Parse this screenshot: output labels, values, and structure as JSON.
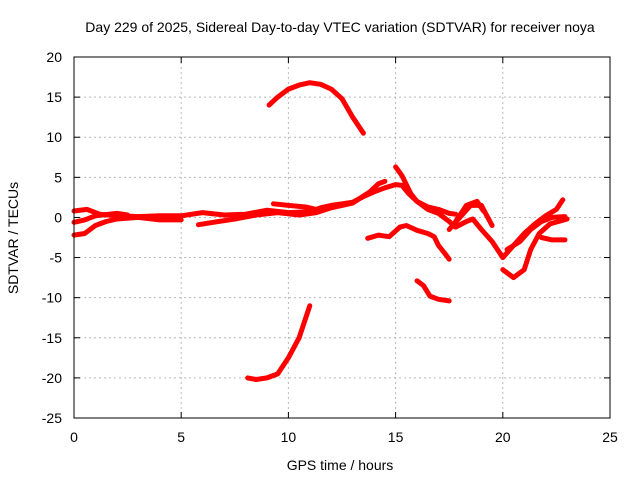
{
  "chart_data": {
    "type": "line",
    "title": "Day 229 of 2025, Sidereal Day-to-day VTEC variation (SDTVAR) for receiver noya",
    "xlabel": "GPS time / hours",
    "ylabel": "SDTVAR / TECUs",
    "xlim": [
      0,
      25
    ],
    "ylim": [
      -25,
      20
    ],
    "xticks": [
      0,
      5,
      10,
      15,
      20,
      25
    ],
    "yticks": [
      -25,
      -20,
      -15,
      -10,
      -5,
      0,
      5,
      10,
      15,
      20
    ],
    "grid": true,
    "series_color": "#ff0000",
    "series": [
      {
        "name": "arc-1",
        "points": [
          [
            0,
            0.8
          ],
          [
            0.6,
            1.0
          ],
          [
            1.2,
            0.4
          ],
          [
            2,
            0.2
          ],
          [
            3,
            0.1
          ],
          [
            4,
            0.2
          ],
          [
            5,
            0.2
          ],
          [
            6,
            0.6
          ],
          [
            7,
            0.3
          ],
          [
            8,
            0.4
          ],
          [
            9,
            0.9
          ],
          [
            10,
            0.6
          ],
          [
            11,
            0.7
          ],
          [
            11.5,
            1.2
          ],
          [
            12,
            1.5
          ],
          [
            12.5,
            1.7
          ],
          [
            13,
            1.9
          ],
          [
            13.5,
            2.6
          ],
          [
            14,
            3.2
          ],
          [
            14.5,
            3.7
          ],
          [
            15,
            4.1
          ],
          [
            15.3,
            4.0
          ],
          [
            15.6,
            3.0
          ],
          [
            16,
            2.0
          ],
          [
            16.5,
            1.3
          ],
          [
            17,
            1.0
          ],
          [
            17.5,
            0.5
          ],
          [
            17.8,
            0.4
          ]
        ]
      },
      {
        "name": "arc-2",
        "points": [
          [
            0,
            -2.2
          ],
          [
            0.5,
            -2.0
          ],
          [
            1,
            -1.0
          ],
          [
            1.5,
            -0.5
          ],
          [
            2,
            -0.2
          ],
          [
            3,
            0.0
          ],
          [
            4,
            -0.3
          ],
          [
            5,
            -0.3
          ]
        ]
      },
      {
        "name": "arc-3",
        "points": [
          [
            0,
            -0.6
          ],
          [
            0.5,
            -0.3
          ],
          [
            1,
            0.2
          ],
          [
            2,
            0.5
          ],
          [
            2.5,
            0.3
          ]
        ]
      },
      {
        "name": "arc-4",
        "points": [
          [
            5.8,
            -0.9
          ],
          [
            6.5,
            -0.6
          ],
          [
            7.5,
            -0.2
          ],
          [
            8.5,
            0.3
          ],
          [
            9.5,
            0.6
          ],
          [
            10.5,
            0.3
          ],
          [
            11.3,
            0.6
          ],
          [
            12,
            1.2
          ],
          [
            13,
            1.8
          ],
          [
            13.8,
            3.2
          ],
          [
            14.2,
            4.2
          ],
          [
            14.5,
            4.5
          ]
        ]
      },
      {
        "name": "arc-5",
        "points": [
          [
            9.3,
            1.7
          ],
          [
            10,
            1.5
          ],
          [
            10.8,
            1.3
          ],
          [
            11.3,
            1.0
          ]
        ]
      },
      {
        "name": "arc-6",
        "points": [
          [
            9.1,
            14.0
          ],
          [
            9.5,
            15.0
          ],
          [
            10,
            16.0
          ],
          [
            10.5,
            16.5
          ],
          [
            11,
            16.8
          ],
          [
            11.5,
            16.6
          ],
          [
            12,
            16.0
          ],
          [
            12.5,
            14.8
          ],
          [
            13,
            12.5
          ],
          [
            13.5,
            10.5
          ]
        ]
      },
      {
        "name": "arc-7",
        "points": [
          [
            8.1,
            -20.0
          ],
          [
            8.5,
            -20.2
          ],
          [
            9,
            -20.0
          ],
          [
            9.5,
            -19.5
          ],
          [
            10,
            -17.5
          ],
          [
            10.5,
            -15.0
          ],
          [
            11,
            -11.0
          ]
        ]
      },
      {
        "name": "arc-8",
        "points": [
          [
            13.7,
            -2.6
          ],
          [
            14.2,
            -2.2
          ],
          [
            14.7,
            -2.4
          ],
          [
            15.2,
            -1.2
          ],
          [
            15.5,
            -1.0
          ],
          [
            16,
            -1.6
          ],
          [
            16.5,
            -2.0
          ],
          [
            16.8,
            -2.4
          ],
          [
            17,
            -3.5
          ],
          [
            17.3,
            -4.5
          ],
          [
            17.5,
            -5.2
          ]
        ]
      },
      {
        "name": "arc-9",
        "points": [
          [
            16.0,
            -7.9
          ],
          [
            16.3,
            -8.5
          ],
          [
            16.6,
            -9.8
          ],
          [
            17,
            -10.2
          ],
          [
            17.5,
            -10.4
          ]
        ]
      },
      {
        "name": "arc-10",
        "points": [
          [
            15.0,
            6.3
          ],
          [
            15.3,
            5.2
          ],
          [
            15.7,
            3.0
          ],
          [
            16,
            2.0
          ],
          [
            16.5,
            1.0
          ],
          [
            17,
            0.5
          ],
          [
            17.5,
            -0.5
          ],
          [
            17.8,
            -1.2
          ],
          [
            18.3,
            -0.5
          ],
          [
            18.6,
            -0.2
          ],
          [
            19,
            -1.5
          ],
          [
            19.5,
            -3.0
          ],
          [
            20,
            -5.0
          ],
          [
            20.5,
            -3.5
          ],
          [
            21,
            -2.0
          ],
          [
            21.5,
            -0.8
          ],
          [
            22,
            0.2
          ],
          [
            22.5,
            1.0
          ],
          [
            22.8,
            2.2
          ]
        ]
      },
      {
        "name": "arc-11",
        "points": [
          [
            17.5,
            -1.5
          ],
          [
            18,
            0.0
          ],
          [
            18.5,
            1.5
          ],
          [
            19,
            1.5
          ],
          [
            19.2,
            0.5
          ],
          [
            19.5,
            -1.0
          ]
        ]
      },
      {
        "name": "arc-12",
        "points": [
          [
            17.8,
            -0.5
          ],
          [
            18.3,
            1.5
          ],
          [
            18.8,
            2.0
          ],
          [
            19.1,
            0.8
          ]
        ]
      },
      {
        "name": "arc-13",
        "points": [
          [
            20.0,
            -6.5
          ],
          [
            20.5,
            -7.5
          ],
          [
            21,
            -6.5
          ],
          [
            21.3,
            -4.0
          ],
          [
            21.7,
            -2.0
          ],
          [
            22.2,
            -0.8
          ],
          [
            22.6,
            -0.5
          ],
          [
            23.0,
            -0.2
          ]
        ]
      },
      {
        "name": "arc-14",
        "points": [
          [
            20.2,
            -4.0
          ],
          [
            20.8,
            -3.0
          ],
          [
            21.3,
            -1.5
          ],
          [
            21.8,
            -0.5
          ],
          [
            22.3,
            0.0
          ],
          [
            22.9,
            0.1
          ]
        ]
      },
      {
        "name": "arc-15",
        "points": [
          [
            21.8,
            -2.5
          ],
          [
            22.3,
            -2.8
          ],
          [
            22.9,
            -2.8
          ]
        ]
      }
    ]
  }
}
